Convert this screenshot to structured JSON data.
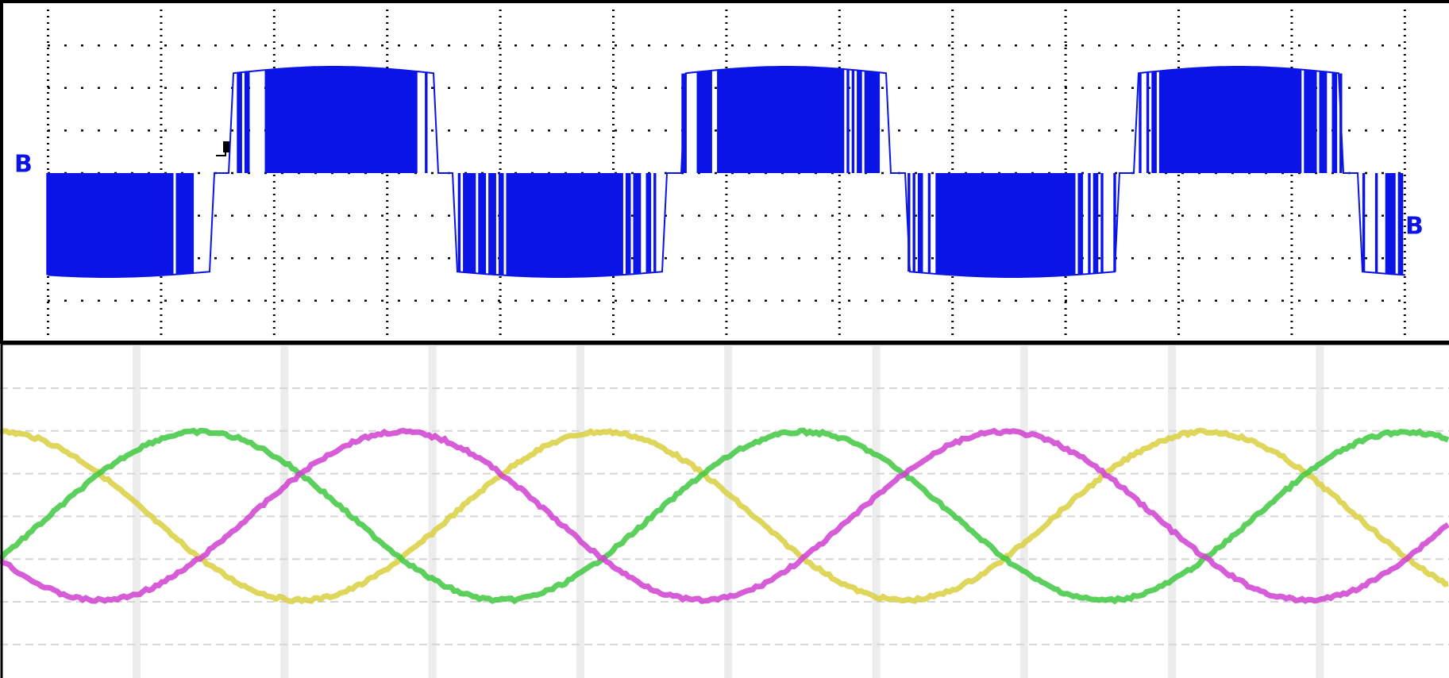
{
  "channel_markers": [
    "B",
    "B"
  ]
}
